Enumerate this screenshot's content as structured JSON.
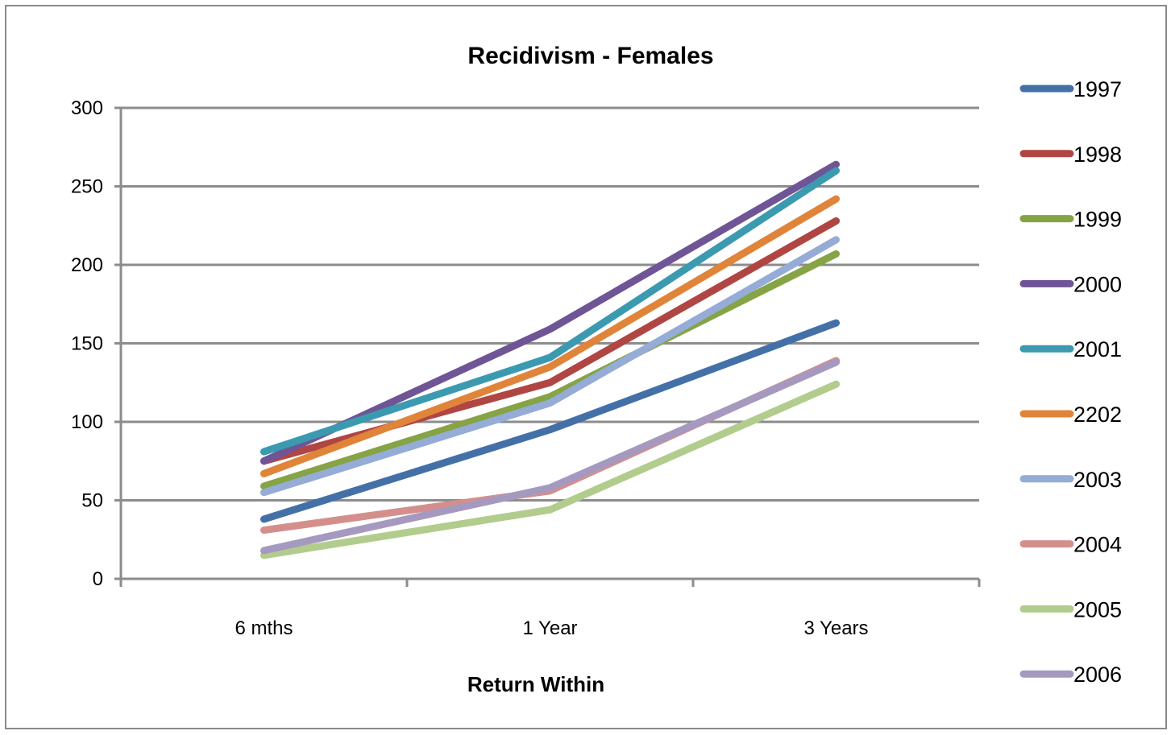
{
  "chart_data": {
    "type": "line",
    "title": "Recidivism - Females",
    "xlabel": "Return Within",
    "ylabel": "",
    "categories": [
      "6 mths",
      "1 Year",
      "3 Years"
    ],
    "ylim": [
      0,
      300
    ],
    "yticks": [
      0,
      50,
      100,
      150,
      200,
      250,
      300
    ],
    "grid": true,
    "legend_position": "right",
    "series": [
      {
        "name": "1997",
        "color": "#4470a8",
        "values": [
          38,
          95,
          163
        ]
      },
      {
        "name": "1998",
        "color": "#b04643",
        "values": [
          75,
          125,
          228
        ]
      },
      {
        "name": "1999",
        "color": "#86a345",
        "values": [
          59,
          116,
          207
        ]
      },
      {
        "name": "2000",
        "color": "#6f5596",
        "values": [
          75,
          159,
          264
        ]
      },
      {
        "name": "2001",
        "color": "#3b9ab0",
        "values": [
          81,
          141,
          260
        ]
      },
      {
        "name": "2202",
        "color": "#e0843a",
        "values": [
          67,
          135,
          242
        ]
      },
      {
        "name": "2003",
        "color": "#94acd6",
        "values": [
          55,
          112,
          216
        ]
      },
      {
        "name": "2004",
        "color": "#d48f8d",
        "values": [
          31,
          56,
          139
        ]
      },
      {
        "name": "2005",
        "color": "#b2cc8d",
        "values": [
          15,
          44,
          124
        ]
      },
      {
        "name": "2006",
        "color": "#a699bf",
        "values": [
          18,
          58,
          138
        ]
      }
    ]
  }
}
